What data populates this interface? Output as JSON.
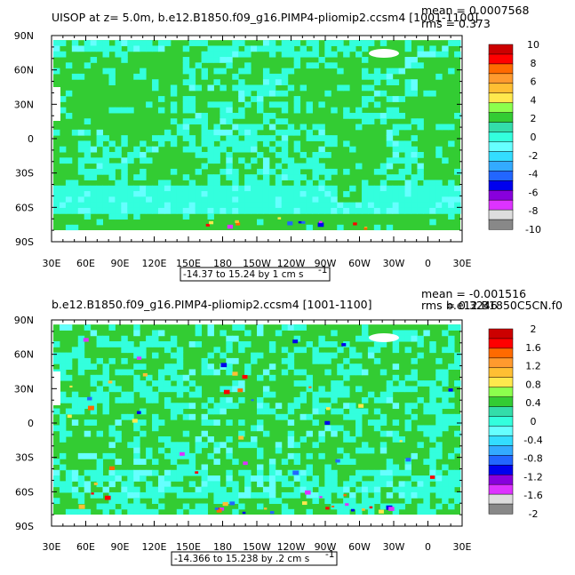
{
  "chart_data": [
    {
      "type": "heatmap",
      "title": "UISOP at z=    5.0m, b.e12.B1850.f09_g16.PIMP4-pliomip2.ccsm4 [1001-1100]",
      "stats": [
        "mean = 0.0007568",
        "rms = 0.373"
      ],
      "range_note": "-14.37 to 15.24 by 1 cm s",
      "range_note_sup": "-1",
      "x_ticks": [
        "30E",
        "60E",
        "90E",
        "120E",
        "150E",
        "180",
        "150W",
        "120W",
        "90W",
        "60W",
        "30W",
        "0",
        "30E"
      ],
      "y_ticks": [
        "90N",
        "60N",
        "30N",
        "0",
        "30S",
        "60S",
        "90S"
      ],
      "ylim": [
        -90,
        90
      ],
      "colorbar": {
        "labels": [
          "10",
          "8",
          "6",
          "4",
          "2",
          "0",
          "-2",
          "-4",
          "-6",
          "-8",
          "-10"
        ],
        "colors": [
          "#cc0000",
          "#ff0000",
          "#ff6a00",
          "#ff9a2e",
          "#ffbf33",
          "#ffe84d",
          "#8cff4d",
          "#33cc33",
          "#33ddaa",
          "#33ffdd",
          "#66ffff",
          "#33ddff",
          "#33aaff",
          "#2266ff",
          "#0000ee",
          "#8800dd",
          "#dd33ff",
          "#dddddd",
          "#888888"
        ]
      }
    },
    {
      "type": "heatmap",
      "title": "b.e12.B1850.f09_g16.PIMP4-pliomip2.ccsm4 [1001-1100]",
      "stats": [
        "mean = -0.001516",
        "rms = 0.3246"
      ],
      "overprint": "b.e12.B1850C5CN.f0",
      "range_note": "-14.366 to 15.238 by .2 cm s",
      "range_note_sup": "-1",
      "x_ticks": [
        "30E",
        "60E",
        "90E",
        "120E",
        "150E",
        "180",
        "150W",
        "120W",
        "90W",
        "60W",
        "30W",
        "0",
        "30E"
      ],
      "y_ticks": [
        "90N",
        "60N",
        "30N",
        "0",
        "30S",
        "60S",
        "90S"
      ],
      "ylim": [
        -90,
        90
      ],
      "colorbar": {
        "labels": [
          "2",
          "1.6",
          "1.2",
          "0.8",
          "0.4",
          "0",
          "-0.4",
          "-0.8",
          "-1.2",
          "-1.6",
          "-2"
        ],
        "colors": [
          "#cc0000",
          "#ff0000",
          "#ff6a00",
          "#ff9a2e",
          "#ffbf33",
          "#ffe84d",
          "#8cff4d",
          "#33cc33",
          "#33ddaa",
          "#33ffdd",
          "#66ffff",
          "#33ddff",
          "#33aaff",
          "#2266ff",
          "#0000ee",
          "#8800dd",
          "#dd33ff",
          "#dddddd",
          "#888888"
        ]
      }
    }
  ]
}
